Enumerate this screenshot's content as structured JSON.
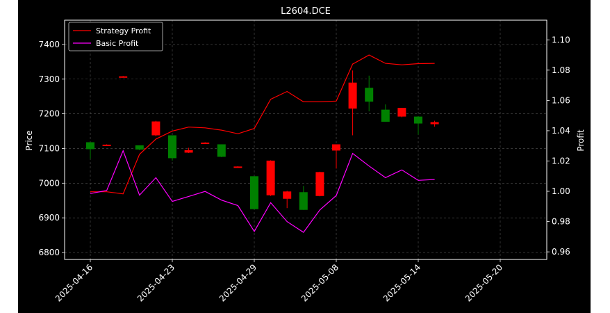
{
  "chart_data": {
    "type": "candlestick",
    "title": "L2604.DCE",
    "xlabel": "",
    "ylabel_left": "Price",
    "ylabel_right": "Profit",
    "ylim_left": [
      6780,
      7470
    ],
    "ylim_right": [
      0.955,
      1.113
    ],
    "yticks_left": [
      6800,
      6900,
      7000,
      7100,
      7200,
      7300,
      7400
    ],
    "yticks_right": [
      0.96,
      0.98,
      1.0,
      1.02,
      1.04,
      1.06,
      1.08,
      1.1
    ],
    "ytick_labels_left": [
      "6800",
      "6900",
      "7000",
      "7100",
      "7200",
      "7300",
      "7400"
    ],
    "ytick_labels_right": [
      "0.96",
      "0.98",
      "1.00",
      "1.02",
      "1.04",
      "1.06",
      "1.08",
      "1.10"
    ],
    "xticks": [
      0,
      5,
      10,
      15,
      20,
      25
    ],
    "xtick_labels": [
      "2025-04-16",
      "2025-04-23",
      "2025-04-29",
      "2025-05-08",
      "2025-05-14",
      "2025-05-20"
    ],
    "grid": true,
    "legend_position": "top-left",
    "colors": {
      "background": "#000000",
      "axes_edge": "#ffffff",
      "text": "#ffffff",
      "grid": "#555555",
      "up": "#ff0000",
      "down": "#008000",
      "strategy": "#ff0000",
      "basic": "#ff00ff"
    },
    "candles": [
      {
        "o": 7118,
        "h": 7118,
        "l": 7070,
        "c": 7098
      },
      {
        "o": 7110,
        "h": 7112,
        "l": 7108,
        "c": 7111
      },
      {
        "o": 7307,
        "h": 7309,
        "l": 7305,
        "c": 7308
      },
      {
        "o": 7109,
        "h": 7109,
        "l": 7095,
        "c": 7097
      },
      {
        "o": 7138,
        "h": 7180,
        "l": 7135,
        "c": 7178
      },
      {
        "o": 7138,
        "h": 7138,
        "l": 7065,
        "c": 7072
      },
      {
        "o": 7088,
        "h": 7102,
        "l": 7087,
        "c": 7095
      },
      {
        "o": 7116,
        "h": 7118,
        "l": 7114,
        "c": 7117
      },
      {
        "o": 7112,
        "h": 7112,
        "l": 7075,
        "c": 7076
      },
      {
        "o": 7047,
        "h": 7049,
        "l": 7046,
        "c": 7048
      },
      {
        "o": 7020,
        "h": 7020,
        "l": 6925,
        "c": 6925
      },
      {
        "o": 6965,
        "h": 7066,
        "l": 6963,
        "c": 7065
      },
      {
        "o": 6955,
        "h": 6978,
        "l": 6928,
        "c": 6976
      },
      {
        "o": 6974,
        "h": 6992,
        "l": 6923,
        "c": 6923
      },
      {
        "o": 6963,
        "h": 7033,
        "l": 6962,
        "c": 7032
      },
      {
        "o": 7094,
        "h": 7112,
        "l": 7042,
        "c": 7112
      },
      {
        "o": 7215,
        "h": 7325,
        "l": 7138,
        "c": 7290
      },
      {
        "o": 7275,
        "h": 7310,
        "l": 7207,
        "c": 7235
      },
      {
        "o": 7212,
        "h": 7227,
        "l": 7177,
        "c": 7177
      },
      {
        "o": 7192,
        "h": 7217,
        "l": 7190,
        "c": 7217
      },
      {
        "o": 7192,
        "h": 7193,
        "l": 7140,
        "c": 7172
      },
      {
        "o": 7170,
        "h": 7180,
        "l": 7163,
        "c": 7176
      }
    ],
    "series": [
      {
        "name": "Strategy Profit",
        "axis": "right",
        "values": [
          0.9997,
          0.9997,
          0.9983,
          1.0244,
          1.0345,
          1.0398,
          1.0424,
          1.0419,
          1.0404,
          1.038,
          1.0415,
          1.0608,
          1.0659,
          1.0591,
          1.0591,
          1.0596,
          1.084,
          1.09,
          1.0845,
          1.0835,
          1.0843,
          1.0845
        ]
      },
      {
        "name": "Basic Profit",
        "axis": "right",
        "values": [
          0.9985,
          1.0005,
          1.0268,
          0.9975,
          1.009,
          0.9933,
          0.9966,
          0.9999,
          0.9942,
          0.9906,
          0.9735,
          0.9925,
          0.98,
          0.9729,
          0.9877,
          0.9972,
          1.025,
          1.0167,
          1.009,
          1.0141,
          1.0072,
          1.0078
        ]
      }
    ]
  }
}
